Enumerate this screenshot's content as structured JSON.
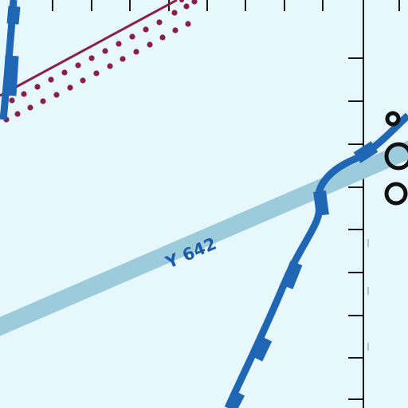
{
  "map": {
    "route_label": "Y 642",
    "colors": {
      "background": "#e6f8fc",
      "airway": "#9ccbdc",
      "boundary": "#1f66b4",
      "restricted_area": "#8a1f4c",
      "grid_ticks": "#1a1a1a",
      "label": "#1d5aa8",
      "navaid_symbol": "#111111"
    },
    "icons": [
      "navaid-symbol-icon"
    ]
  }
}
